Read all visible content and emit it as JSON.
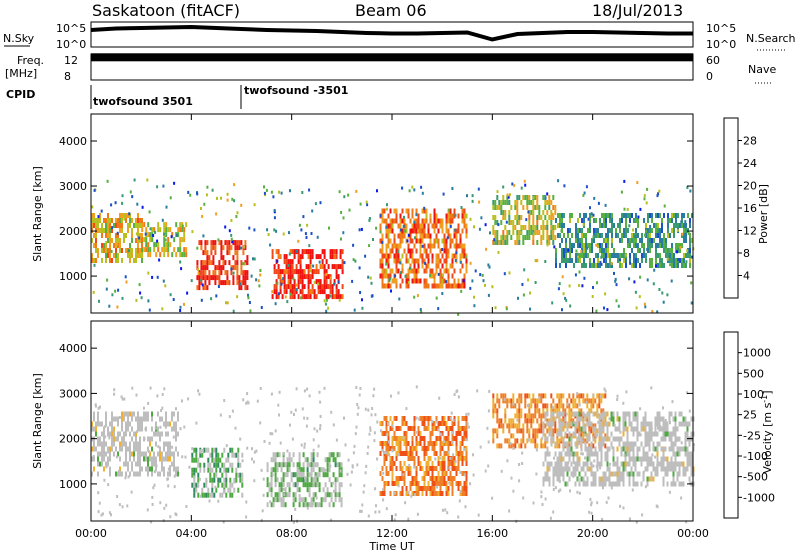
{
  "header": {
    "title": "Saskatoon (fitACF)",
    "beam": "Beam 06",
    "date": "18/Jul/2013"
  },
  "panels": {
    "nsky_label": "N.Sky",
    "nsky_ticks": [
      "10^5",
      "10^0"
    ],
    "nsearch_label": "N.Search",
    "nsearch_ticks": [
      "10^5",
      "10^0"
    ],
    "freq_label": "Freq.",
    "freq_unit": "[MHz]",
    "freq_ticks": [
      "12",
      "8"
    ],
    "nave_label": "Nave",
    "nave_ticks": [
      "60",
      "0"
    ],
    "cpid_label": "CPID",
    "cpid_entries": [
      "twofsound 3501",
      "twofsound -3501"
    ]
  },
  "axes": {
    "x_ticks": [
      "00:00",
      "04:00",
      "08:00",
      "12:00",
      "16:00",
      "20:00",
      "00:00"
    ],
    "x_label": "Time UT",
    "y_ticks": [
      "1000",
      "2000",
      "3000",
      "4000"
    ],
    "y_label": "Slant Range [km]"
  },
  "colorbars": {
    "power": {
      "label": "Power [dB]",
      "ticks": [
        "4",
        "8",
        "12",
        "16",
        "20",
        "24",
        "28"
      ],
      "colors": [
        "#0a1bf0",
        "#1c50c8",
        "#2a7ca0",
        "#3a9a70",
        "#58b040",
        "#b8c020",
        "#f0a020",
        "#f07818",
        "#f04818",
        "#f01010"
      ]
    },
    "velocity": {
      "label": "Velocity [m s-1]",
      "ticks": [
        "1000",
        "500",
        "100",
        "25",
        "-25",
        "-100",
        "-500",
        "-1000"
      ],
      "colors": [
        "#1a3cc0",
        "#2060a0",
        "#2f8a60",
        "#4caa40",
        "#bebebe",
        "#bebebe",
        "#f0b030",
        "#f08028",
        "#f05018",
        "#f01010"
      ]
    }
  },
  "chart_data": [
    {
      "type": "line",
      "title": "Saskatoon (fitACF)",
      "panel": "N.Sky / N.Search",
      "x": [
        0,
        1,
        2,
        3,
        4,
        5,
        6,
        7,
        8,
        9,
        10,
        11,
        12,
        13,
        14,
        15,
        16,
        17,
        18,
        19,
        20,
        21,
        22,
        23,
        24
      ],
      "series": [
        {
          "name": "N.Sky",
          "log10_values": [
            3.4,
            3.7,
            3.8,
            3.9,
            4.0,
            3.8,
            3.6,
            3.4,
            3.3,
            3.2,
            3.0,
            2.8,
            2.7,
            2.7,
            2.8,
            2.9,
            1.5,
            2.6,
            2.8,
            3.0,
            3.0,
            2.9,
            2.8,
            2.7,
            2.7
          ]
        }
      ],
      "xlim": [
        0,
        24
      ],
      "ylim": [
        "10^0",
        "10^5"
      ]
    },
    {
      "type": "line",
      "panel": "Freq. / Nave",
      "x": [
        0,
        24
      ],
      "series": [
        {
          "name": "Freq. [MHz]",
          "values": [
            11.5,
            11.5
          ]
        }
      ],
      "ylim": [
        8,
        12
      ]
    },
    {
      "type": "heatmap",
      "panel": "Power",
      "xlabel": "Time UT",
      "ylabel": "Slant Range [km]",
      "xlim": [
        0,
        24
      ],
      "ylim": [
        180,
        4600
      ],
      "z_label": "Power [dB]",
      "z_range": [
        0,
        30
      ],
      "regions": [
        {
          "t": [
            0.0,
            2.0
          ],
          "r": [
            1300,
            2400
          ],
          "level": 20
        },
        {
          "t": [
            2.0,
            3.8
          ],
          "r": [
            1500,
            2200
          ],
          "level": 18
        },
        {
          "t": [
            4.2,
            6.2
          ],
          "r": [
            700,
            1800
          ],
          "level": 28
        },
        {
          "t": [
            7.2,
            10.0
          ],
          "r": [
            500,
            1600
          ],
          "level": 30
        },
        {
          "t": [
            11.5,
            15.0
          ],
          "r": [
            800,
            2500
          ],
          "level": 24
        },
        {
          "t": [
            16.0,
            18.5
          ],
          "r": [
            1800,
            2800
          ],
          "level": 16
        },
        {
          "t": [
            18.5,
            24.0
          ],
          "r": [
            1200,
            2400
          ],
          "level": 10
        }
      ]
    },
    {
      "type": "heatmap",
      "panel": "Velocity",
      "xlabel": "Time UT",
      "ylabel": "Slant Range [km]",
      "xlim": [
        0,
        24
      ],
      "ylim": [
        180,
        4600
      ],
      "z_label": "Velocity [m s-1]",
      "z_range": [
        -1000,
        1000
      ],
      "regions": [
        {
          "t": [
            0.0,
            3.5
          ],
          "r": [
            1200,
            2600
          ],
          "level": 0
        },
        {
          "t": [
            4.0,
            6.0
          ],
          "r": [
            700,
            1800
          ],
          "level": 300
        },
        {
          "t": [
            7.0,
            10.0
          ],
          "r": [
            500,
            1700
          ],
          "level": 200
        },
        {
          "t": [
            11.5,
            15.0
          ],
          "r": [
            800,
            2500
          ],
          "level": -600
        },
        {
          "t": [
            16.0,
            20.5
          ],
          "r": [
            1800,
            3000
          ],
          "level": -500
        },
        {
          "t": [
            18.0,
            24.0
          ],
          "r": [
            1000,
            2600
          ],
          "level": 0
        }
      ]
    }
  ]
}
